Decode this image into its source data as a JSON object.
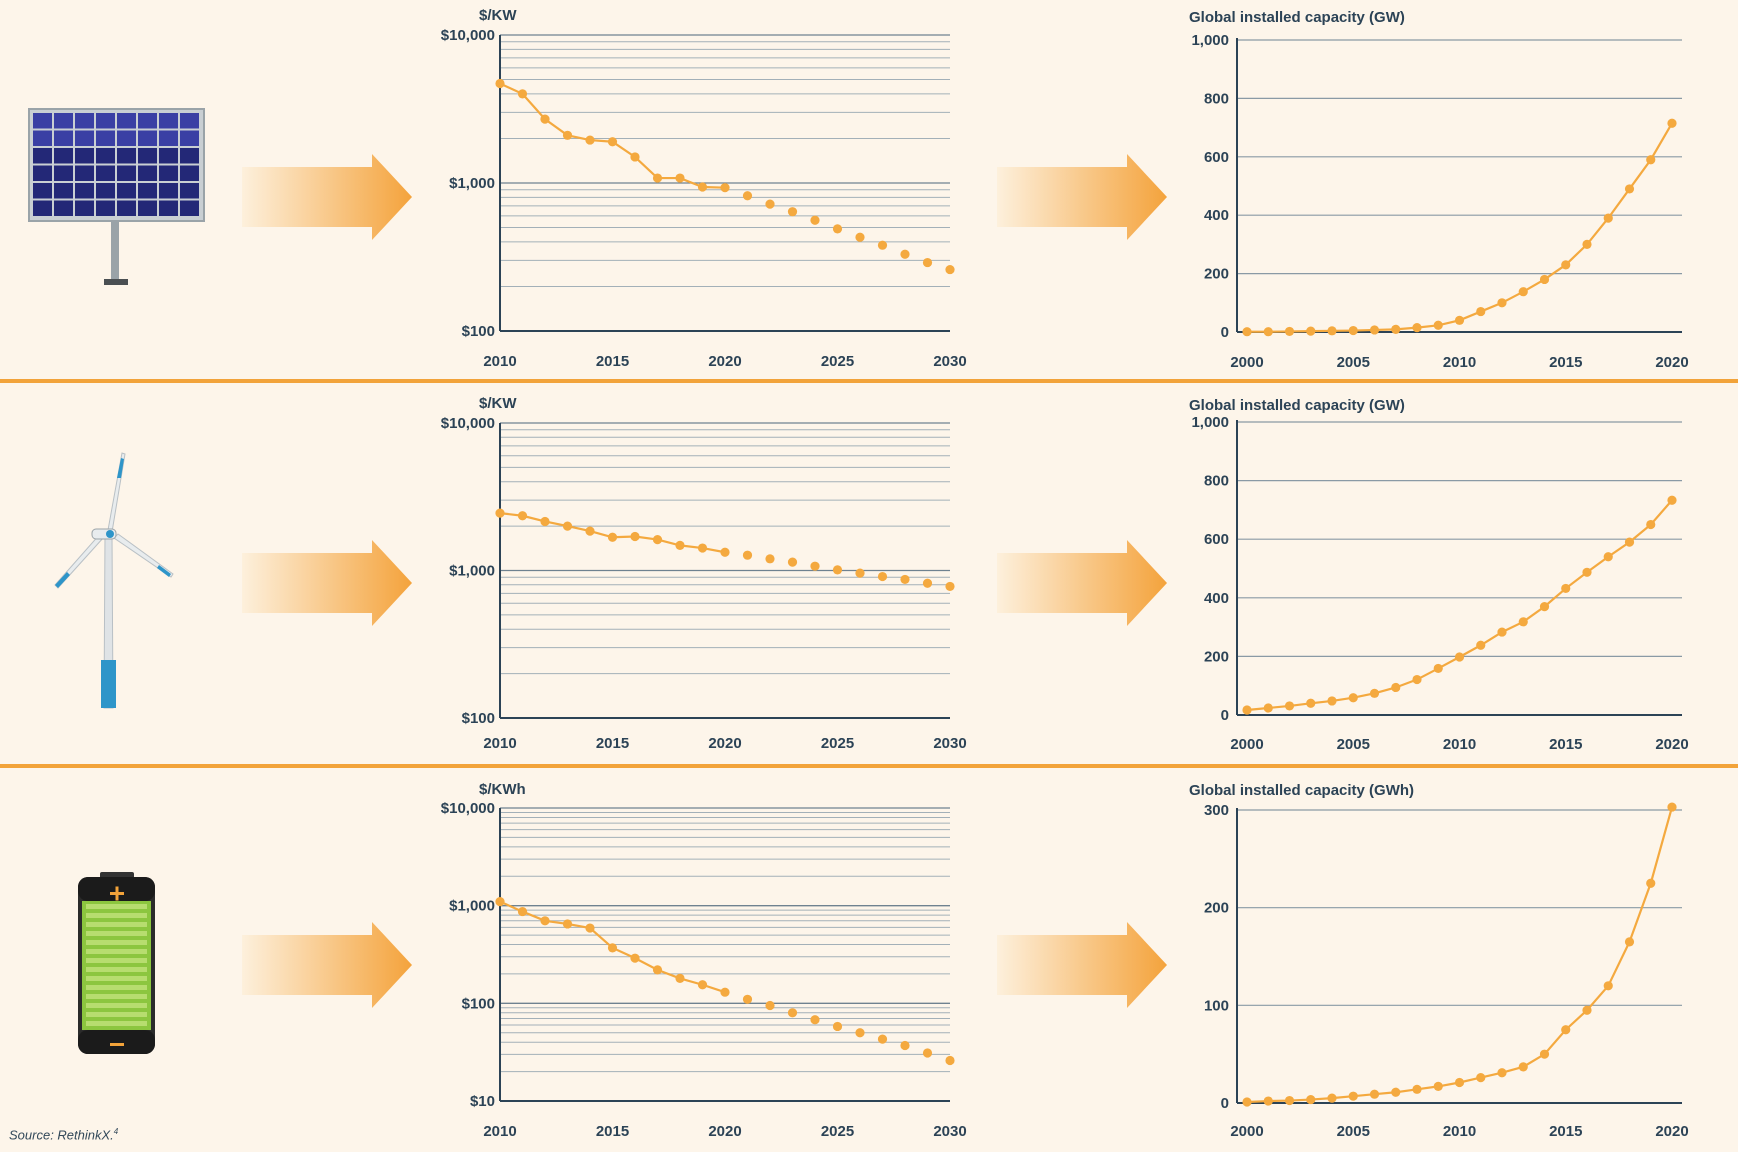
{
  "source": {
    "text": "Source: RethinkX.",
    "ref": "4"
  },
  "colors": {
    "accent": "#f4a93f",
    "axis": "#2c4356",
    "grid": "#8a9aa5",
    "bg": "#fdf5ea"
  },
  "rows": [
    {
      "technology_icon": "solar-panel-icon",
      "cost_chart": {
        "type": "line",
        "scale": "log",
        "ylabel": "$/KW",
        "ylim": [
          100,
          10000
        ],
        "yticks": [
          100,
          1000,
          10000
        ],
        "ytick_labels": [
          "$100",
          "$1,000",
          "$10,000"
        ],
        "xticks": [
          2010,
          2015,
          2020,
          2025,
          2030
        ],
        "x": [
          2010,
          2011,
          2012,
          2013,
          2014,
          2015,
          2016,
          2017,
          2018,
          2019,
          2020,
          2021,
          2022,
          2023,
          2024,
          2025,
          2026,
          2027,
          2028,
          2029,
          2030
        ],
        "values": [
          4700,
          4000,
          2700,
          2100,
          1950,
          1900,
          1500,
          1080,
          1080,
          940,
          930,
          820,
          720,
          640,
          560,
          490,
          430,
          380,
          330,
          290,
          260
        ],
        "historical_until": 2020
      },
      "capacity_chart": {
        "type": "line",
        "ylabel": "Global installed capacity (GW)",
        "ylim": [
          0,
          1000
        ],
        "yticks": [
          0,
          200,
          400,
          600,
          800,
          1000
        ],
        "ytick_labels": [
          "0",
          "200",
          "400",
          "600",
          "800",
          "1,000"
        ],
        "xticks": [
          2000,
          2005,
          2010,
          2015,
          2020
        ],
        "x": [
          2000,
          2001,
          2002,
          2003,
          2004,
          2005,
          2006,
          2007,
          2008,
          2009,
          2010,
          2011,
          2012,
          2013,
          2014,
          2015,
          2016,
          2017,
          2018,
          2019,
          2020
        ],
        "values": [
          1,
          1,
          2,
          3,
          4,
          5,
          7,
          9,
          15,
          23,
          40,
          70,
          100,
          138,
          180,
          230,
          300,
          390,
          490,
          590,
          715
        ]
      }
    },
    {
      "technology_icon": "wind-turbine-icon",
      "cost_chart": {
        "type": "line",
        "scale": "log",
        "ylabel": "$/KW",
        "ylim": [
          100,
          10000
        ],
        "yticks": [
          100,
          1000,
          10000
        ],
        "ytick_labels": [
          "$100",
          "$1,000",
          "$10,000"
        ],
        "xticks": [
          2010,
          2015,
          2020,
          2025,
          2030
        ],
        "x": [
          2010,
          2011,
          2012,
          2013,
          2014,
          2015,
          2016,
          2017,
          2018,
          2019,
          2020,
          2021,
          2022,
          2023,
          2024,
          2025,
          2026,
          2027,
          2028,
          2029,
          2030
        ],
        "values": [
          2450,
          2350,
          2150,
          2000,
          1850,
          1680,
          1700,
          1620,
          1480,
          1420,
          1330,
          1270,
          1200,
          1140,
          1070,
          1010,
          960,
          910,
          870,
          820,
          780
        ],
        "historical_until": 2020
      },
      "capacity_chart": {
        "type": "line",
        "ylabel": "Global installed capacity (GW)",
        "ylim": [
          0,
          1000
        ],
        "yticks": [
          0,
          200,
          400,
          600,
          800,
          1000
        ],
        "ytick_labels": [
          "0",
          "200",
          "400",
          "600",
          "800",
          "1,000"
        ],
        "xticks": [
          2000,
          2005,
          2010,
          2015,
          2020
        ],
        "x": [
          2000,
          2001,
          2002,
          2003,
          2004,
          2005,
          2006,
          2007,
          2008,
          2009,
          2010,
          2011,
          2012,
          2013,
          2014,
          2015,
          2016,
          2017,
          2018,
          2019,
          2020
        ],
        "values": [
          17,
          24,
          31,
          40,
          48,
          59,
          74,
          94,
          121,
          159,
          198,
          238,
          283,
          318,
          370,
          432,
          487,
          540,
          590,
          650,
          733
        ]
      }
    },
    {
      "technology_icon": "battery-icon",
      "cost_chart": {
        "type": "line",
        "scale": "log",
        "ylabel": "$/KWh",
        "ylim": [
          10,
          10000
        ],
        "yticks": [
          10,
          100,
          1000,
          10000
        ],
        "ytick_labels": [
          "$10",
          "$100",
          "$1,000",
          "$10,000"
        ],
        "xticks": [
          2010,
          2015,
          2020,
          2025,
          2030
        ],
        "x": [
          2010,
          2011,
          2012,
          2013,
          2014,
          2015,
          2016,
          2017,
          2018,
          2019,
          2020,
          2021,
          2022,
          2023,
          2024,
          2025,
          2026,
          2027,
          2028,
          2029,
          2030
        ],
        "values": [
          1100,
          870,
          700,
          650,
          590,
          370,
          290,
          220,
          180,
          155,
          130,
          110,
          95,
          80,
          68,
          58,
          50,
          43,
          37,
          31,
          26
        ],
        "historical_until": 2020
      },
      "capacity_chart": {
        "type": "line",
        "ylabel": "Global installed capacity (GWh)",
        "ylim": [
          0,
          300
        ],
        "yticks": [
          0,
          100,
          200,
          300
        ],
        "ytick_labels": [
          "0",
          "100",
          "200",
          "300"
        ],
        "xticks": [
          2000,
          2005,
          2010,
          2015,
          2020
        ],
        "x": [
          2000,
          2001,
          2002,
          2003,
          2004,
          2005,
          2006,
          2007,
          2008,
          2009,
          2010,
          2011,
          2012,
          2013,
          2014,
          2015,
          2016,
          2017,
          2018,
          2019,
          2020
        ],
        "values": [
          1,
          2,
          2.5,
          3.5,
          5,
          7,
          9,
          11,
          14,
          17,
          21,
          26,
          31,
          37,
          50,
          75,
          95,
          120,
          165,
          225,
          303
        ]
      }
    }
  ]
}
